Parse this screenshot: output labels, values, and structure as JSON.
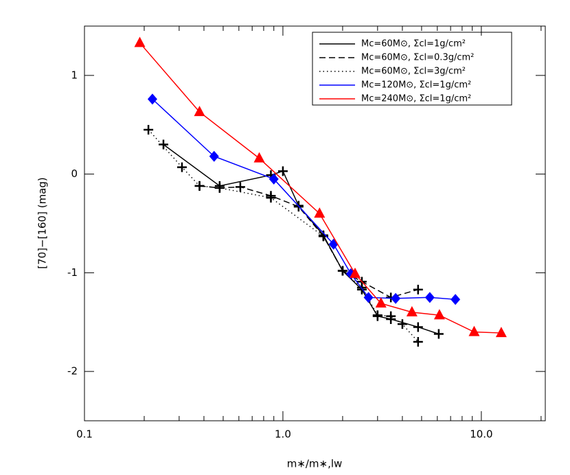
{
  "chart_data": {
    "type": "line",
    "xlabel": "m∗/m∗,lw",
    "ylabel": "[70]−[160] (mag)",
    "xscale": "log",
    "xlim": [
      0.1,
      21
    ],
    "ylim": [
      -2.5,
      1.5
    ],
    "xticks": [
      0.1,
      {
        "value": 1,
        "label": "1.0"
      },
      {
        "value": 10,
        "label": "10.0"
      }
    ],
    "xminorticks": [
      0.2,
      0.3,
      0.4,
      0.5,
      0.6,
      0.7,
      0.8,
      0.9,
      2,
      3,
      4,
      5,
      6,
      7,
      8,
      9,
      20
    ],
    "yticks": [
      -2,
      -1,
      0,
      1
    ],
    "legend": "upper right",
    "series": [
      {
        "name": "Mc=60M⊙, Σcl=1g/cm²",
        "color": "#000000",
        "dash": "solid",
        "marker": "plus",
        "x": [
          0.25,
          0.48,
          0.87,
          1.0,
          1.2,
          1.6,
          2.0,
          2.5,
          3.0,
          3.5,
          4.8,
          6.1
        ],
        "values": [
          0.3,
          -0.12,
          -0.01,
          0.03,
          -0.32,
          -0.62,
          -0.98,
          -1.17,
          -1.44,
          -1.47,
          -1.55,
          -1.62
        ]
      },
      {
        "name": "Mc=60M⊙, Σcl=0.3g/cm²",
        "color": "#000000",
        "dash": "dashed",
        "marker": "plus",
        "x": [
          0.38,
          0.48,
          0.61,
          0.87,
          1.2,
          1.6,
          2.0,
          2.5,
          3.5,
          4.8
        ],
        "values": [
          -0.12,
          -0.14,
          -0.13,
          -0.22,
          -0.33,
          -0.63,
          -0.98,
          -1.09,
          -1.25,
          -1.17
        ]
      },
      {
        "name": "Mc=60M⊙, Σcl=3g/cm²",
        "color": "#000000",
        "dash": "dotted",
        "marker": "plus",
        "x": [
          0.21,
          0.31,
          0.38,
          0.48,
          0.87,
          1.6,
          2.0,
          2.5,
          3.0,
          3.5,
          4.0,
          4.8
        ],
        "values": [
          0.45,
          0.07,
          -0.12,
          -0.14,
          -0.24,
          -0.63,
          -0.98,
          -1.15,
          -1.43,
          -1.44,
          -1.52,
          -1.7
        ]
      },
      {
        "name": "Mc=120M⊙, Σcl=1g/cm²",
        "color": "#0000ff",
        "dash": "solid",
        "marker": "diamond",
        "x": [
          0.22,
          0.45,
          0.9,
          1.8,
          2.2,
          2.7,
          3.7,
          5.5,
          7.4
        ],
        "values": [
          0.76,
          0.18,
          -0.05,
          -0.71,
          -1.01,
          -1.25,
          -1.26,
          -1.25,
          -1.27
        ]
      },
      {
        "name": "Mc=240M⊙, Σcl=1g/cm²",
        "color": "#ff0000",
        "dash": "solid",
        "marker": "triangle",
        "x": [
          0.19,
          0.38,
          0.76,
          1.53,
          2.31,
          3.12,
          4.47,
          6.15,
          9.2,
          12.6
        ],
        "values": [
          1.33,
          0.63,
          0.16,
          -0.4,
          -1.01,
          -1.31,
          -1.4,
          -1.43,
          -1.6,
          -1.61
        ]
      }
    ]
  }
}
